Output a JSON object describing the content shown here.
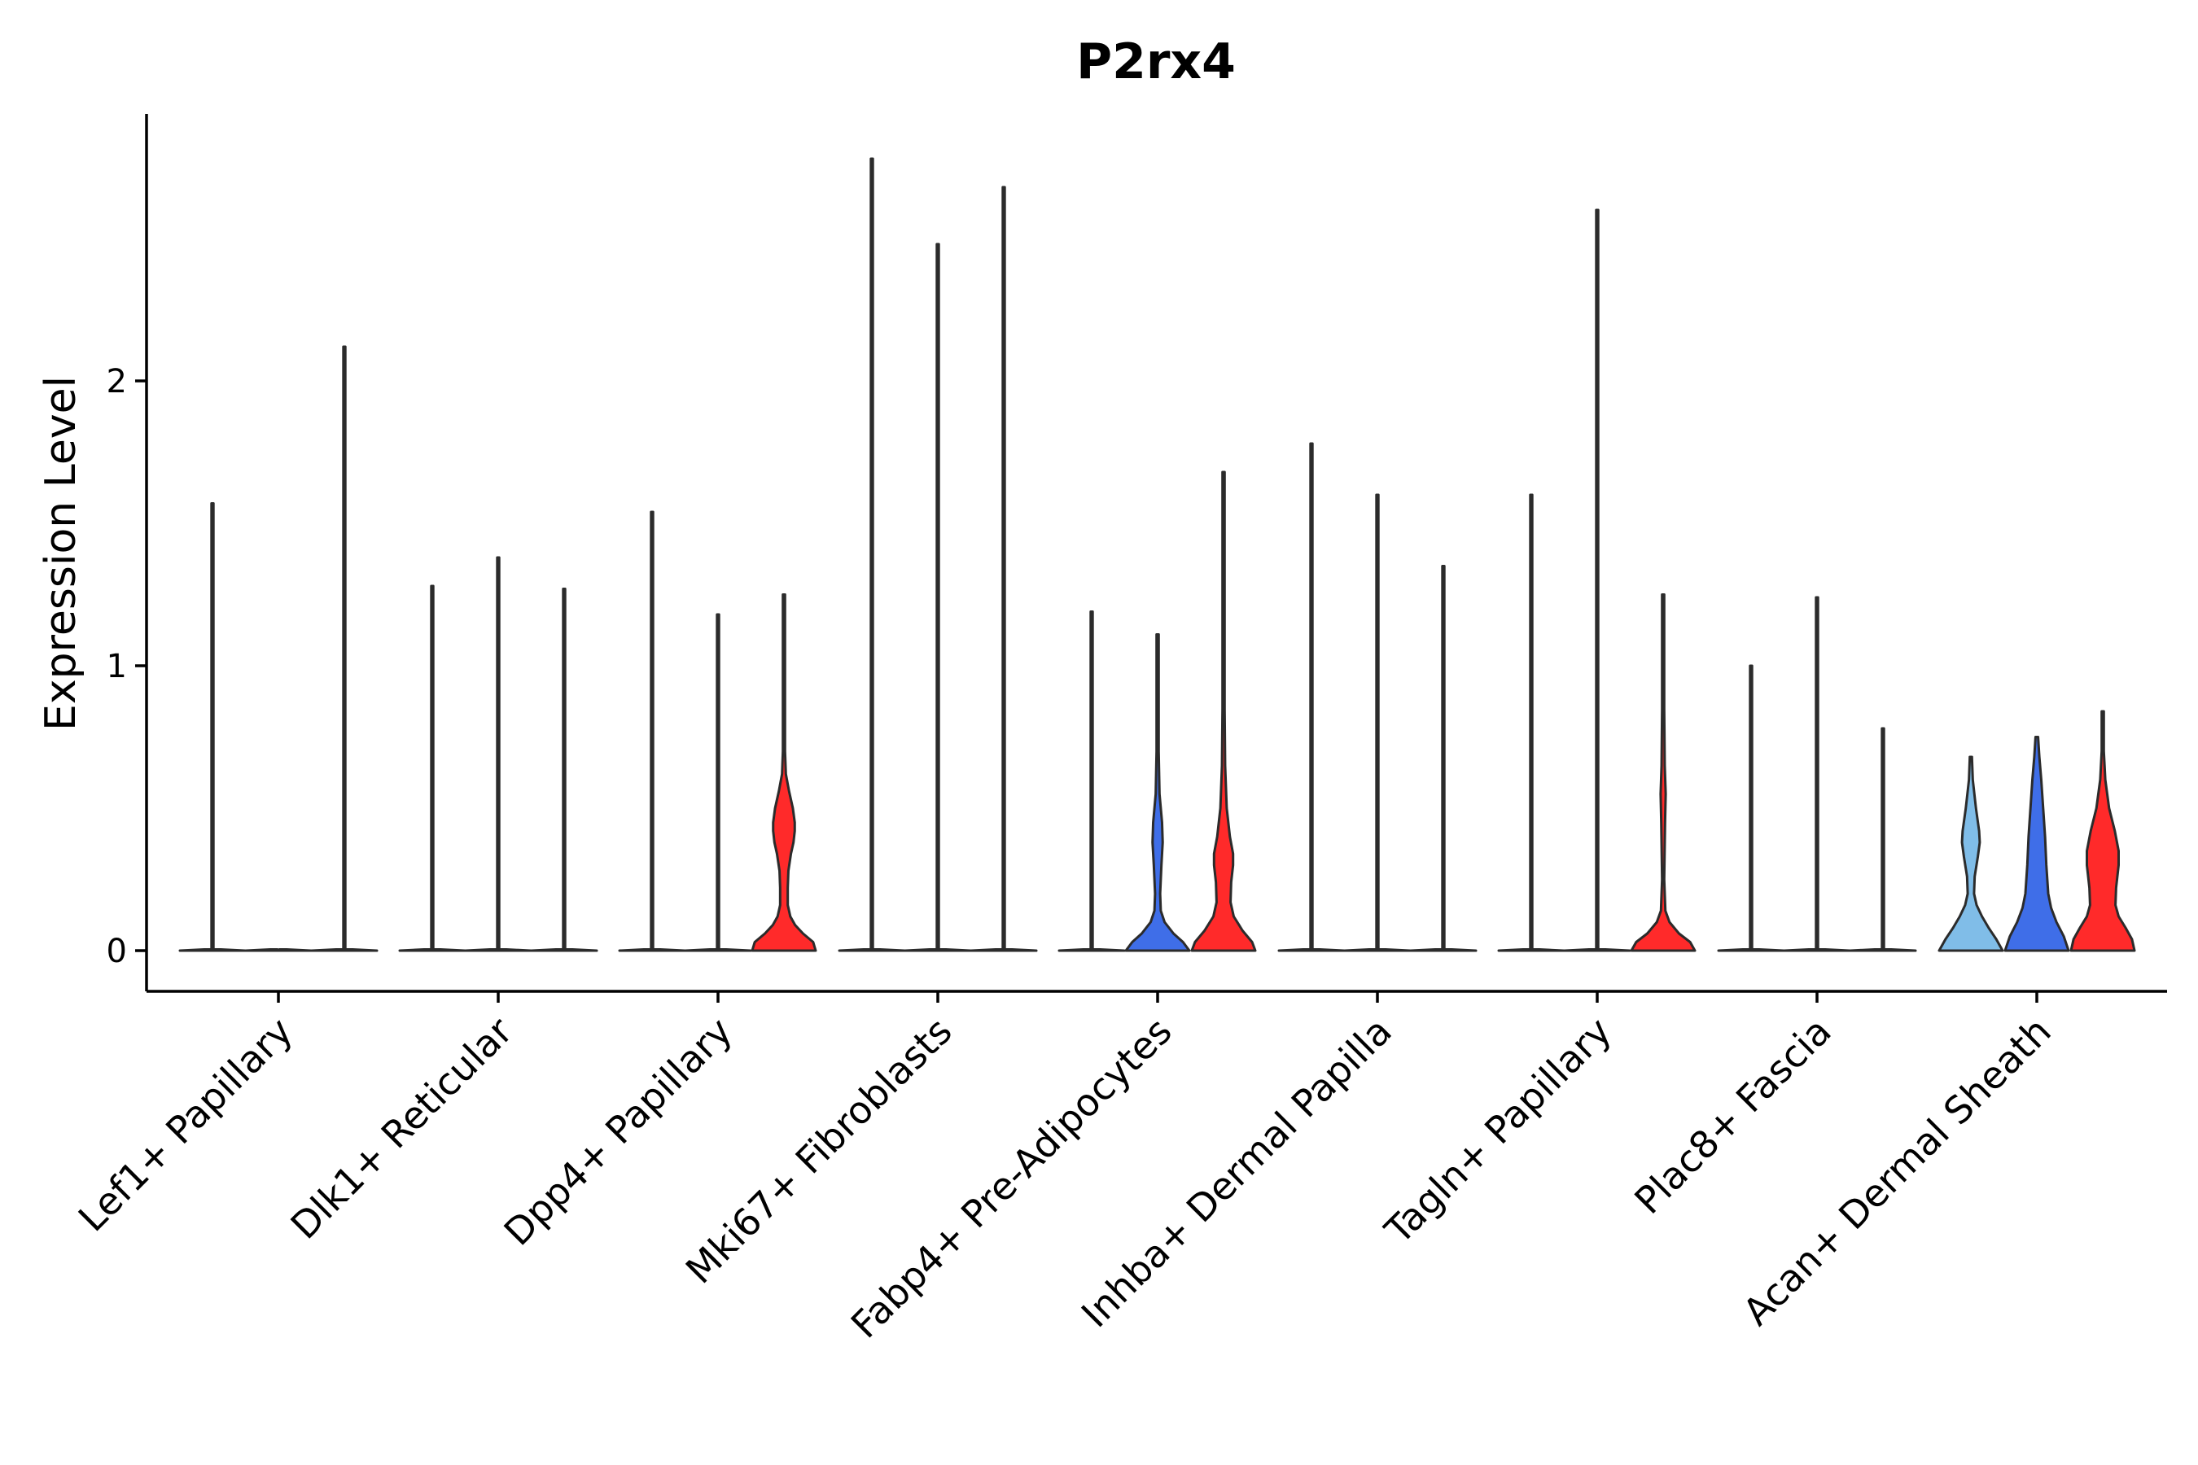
{
  "chart_data": {
    "type": "violin",
    "title": "P2rx4",
    "ylabel": "Expression Level",
    "xlabel": "",
    "ylim": [
      -0.14,
      2.94
    ],
    "yticks": [
      0,
      1,
      2
    ],
    "grid": false,
    "legend": "none",
    "categories": [
      "Lef1+ Papillary",
      "Dlk1+ Reticular",
      "Dpp4+ Papillary",
      "Mki67+ Fibroblasts",
      "Fabp4+ Pre-Adipocytes",
      "Inhba+ Dermal Papilla",
      "Tagln+ Papillary",
      "Plac8+ Fascia",
      "Acan+ Dermal Sheath"
    ],
    "group_colors": [
      "#80bde8",
      "#3f6ee8",
      "#ff2a2a"
    ],
    "violins": [
      [
        {
          "max": 1.57,
          "shape": "line"
        },
        {
          "max": 0.0,
          "shape": "line"
        },
        {
          "max": 2.12,
          "shape": "line"
        }
      ],
      [
        {
          "max": 1.28,
          "shape": "line"
        },
        {
          "max": 1.38,
          "shape": "line"
        },
        {
          "max": 1.27,
          "shape": "line"
        }
      ],
      [
        {
          "max": 1.54,
          "shape": "line"
        },
        {
          "max": 1.18,
          "shape": "line"
        },
        {
          "max": 1.25,
          "shape": "dist",
          "profile": [
            [
              0,
              1.0
            ],
            [
              0.03,
              0.92
            ],
            [
              0.06,
              0.6
            ],
            [
              0.09,
              0.35
            ],
            [
              0.12,
              0.2
            ],
            [
              0.16,
              0.12
            ],
            [
              0.22,
              0.12
            ],
            [
              0.28,
              0.14
            ],
            [
              0.34,
              0.22
            ],
            [
              0.38,
              0.3
            ],
            [
              0.42,
              0.34
            ],
            [
              0.45,
              0.34
            ],
            [
              0.5,
              0.28
            ],
            [
              0.56,
              0.16
            ],
            [
              0.62,
              0.06
            ],
            [
              0.7,
              0.02
            ],
            [
              1.25,
              0
            ]
          ]
        }
      ],
      [
        {
          "max": 2.78,
          "shape": "line"
        },
        {
          "max": 2.48,
          "shape": "line"
        },
        {
          "max": 2.68,
          "shape": "line"
        }
      ],
      [
        {
          "max": 1.19,
          "shape": "line"
        },
        {
          "max": 1.11,
          "shape": "dist",
          "profile": [
            [
              0,
              1.0
            ],
            [
              0.03,
              0.8
            ],
            [
              0.06,
              0.5
            ],
            [
              0.1,
              0.22
            ],
            [
              0.14,
              0.1
            ],
            [
              0.2,
              0.08
            ],
            [
              0.3,
              0.12
            ],
            [
              0.38,
              0.16
            ],
            [
              0.45,
              0.14
            ],
            [
              0.55,
              0.06
            ],
            [
              0.7,
              0.02
            ],
            [
              1.11,
              0
            ]
          ]
        },
        {
          "max": 1.68,
          "shape": "dist",
          "profile": [
            [
              0,
              1.0
            ],
            [
              0.03,
              0.9
            ],
            [
              0.07,
              0.6
            ],
            [
              0.12,
              0.32
            ],
            [
              0.17,
              0.22
            ],
            [
              0.24,
              0.24
            ],
            [
              0.3,
              0.3
            ],
            [
              0.34,
              0.3
            ],
            [
              0.4,
              0.2
            ],
            [
              0.5,
              0.1
            ],
            [
              0.65,
              0.05
            ],
            [
              0.85,
              0.03
            ],
            [
              1.1,
              0.01
            ],
            [
              1.68,
              0
            ]
          ]
        }
      ],
      [
        {
          "max": 1.78,
          "shape": "line"
        },
        {
          "max": 1.6,
          "shape": "line"
        },
        {
          "max": 1.35,
          "shape": "line"
        }
      ],
      [
        {
          "max": 1.6,
          "shape": "line"
        },
        {
          "max": 2.6,
          "shape": "line"
        },
        {
          "max": 1.25,
          "shape": "dist",
          "profile": [
            [
              0,
              1.0
            ],
            [
              0.03,
              0.85
            ],
            [
              0.06,
              0.5
            ],
            [
              0.1,
              0.2
            ],
            [
              0.14,
              0.07
            ],
            [
              0.25,
              0.03
            ],
            [
              0.45,
              0.06
            ],
            [
              0.55,
              0.08
            ],
            [
              0.65,
              0.05
            ],
            [
              0.85,
              0.02
            ],
            [
              1.25,
              0
            ]
          ]
        }
      ],
      [
        {
          "max": 1.0,
          "shape": "line"
        },
        {
          "max": 1.24,
          "shape": "line"
        },
        {
          "max": 0.78,
          "shape": "line"
        }
      ],
      [
        {
          "max": 0.68,
          "shape": "dist",
          "profile": [
            [
              0,
              1.0
            ],
            [
              0.04,
              0.8
            ],
            [
              0.08,
              0.56
            ],
            [
              0.12,
              0.35
            ],
            [
              0.16,
              0.18
            ],
            [
              0.2,
              0.1
            ],
            [
              0.26,
              0.12
            ],
            [
              0.33,
              0.22
            ],
            [
              0.38,
              0.28
            ],
            [
              0.42,
              0.26
            ],
            [
              0.5,
              0.16
            ],
            [
              0.6,
              0.06
            ],
            [
              0.68,
              0.02
            ]
          ]
        },
        {
          "max": 0.75,
          "shape": "dist",
          "profile": [
            [
              0,
              1.0
            ],
            [
              0.05,
              0.85
            ],
            [
              0.1,
              0.62
            ],
            [
              0.15,
              0.45
            ],
            [
              0.2,
              0.36
            ],
            [
              0.3,
              0.3
            ],
            [
              0.4,
              0.26
            ],
            [
              0.5,
              0.2
            ],
            [
              0.6,
              0.14
            ],
            [
              0.68,
              0.08
            ],
            [
              0.75,
              0.04
            ]
          ]
        },
        {
          "max": 0.84,
          "shape": "dist",
          "profile": [
            [
              0,
              1.0
            ],
            [
              0.04,
              0.92
            ],
            [
              0.08,
              0.72
            ],
            [
              0.12,
              0.5
            ],
            [
              0.16,
              0.4
            ],
            [
              0.22,
              0.42
            ],
            [
              0.3,
              0.5
            ],
            [
              0.35,
              0.5
            ],
            [
              0.42,
              0.38
            ],
            [
              0.5,
              0.2
            ],
            [
              0.6,
              0.08
            ],
            [
              0.7,
              0.03
            ],
            [
              0.84,
              0
            ]
          ]
        }
      ]
    ]
  }
}
